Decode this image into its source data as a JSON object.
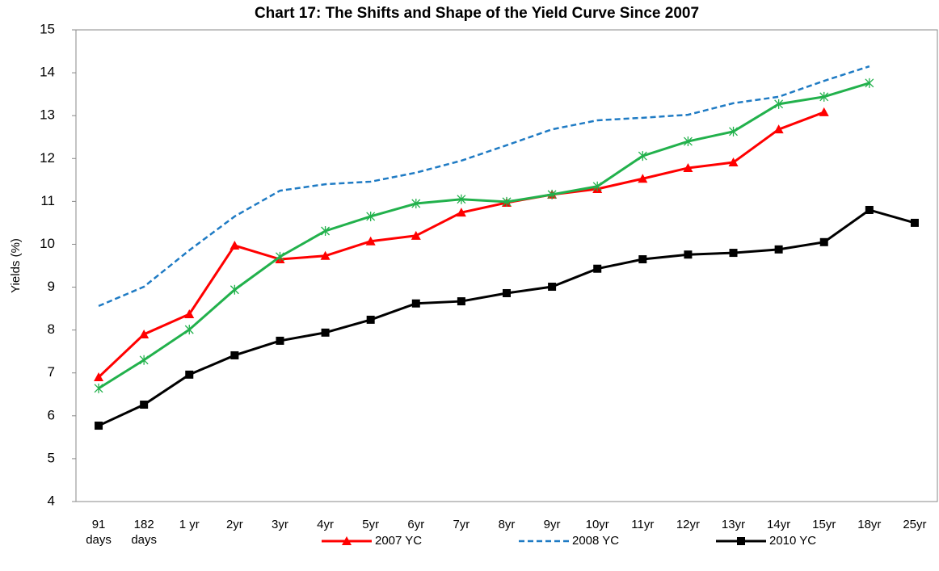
{
  "chart_data": {
    "type": "line",
    "title": "Chart 17: The Shifts and Shape of the Yield Curve Since 2007",
    "y_label": "Yields (%)",
    "categories": [
      "91 days",
      "182 days",
      "1 yr",
      "2yr",
      "3yr",
      "4yr",
      "5yr",
      "6yr",
      "7yr",
      "8yr",
      "9yr",
      "10yr",
      "11yr",
      "12yr",
      "13yr",
      "14yr",
      "15yr",
      "18yr",
      "25yr"
    ],
    "series": [
      {
        "name": "2007 YC",
        "color": "#ff0000",
        "marker": "triangle",
        "values": [
          6.9,
          7.9,
          8.37,
          9.97,
          9.65,
          9.73,
          10.07,
          10.2,
          10.74,
          10.97,
          11.16,
          11.29,
          11.53,
          11.78,
          11.91,
          12.68,
          13.08,
          null,
          null
        ]
      },
      {
        "name": "2008 YC",
        "color": "#1f7bc4",
        "dashed": true,
        "values": [
          8.56,
          9.01,
          9.86,
          10.65,
          11.25,
          11.4,
          11.46,
          11.67,
          11.95,
          12.31,
          12.68,
          12.89,
          12.95,
          13.02,
          13.29,
          13.44,
          13.81,
          14.15,
          null
        ]
      },
      {
        "color": "#22b14c",
        "marker": "star",
        "values": [
          6.64,
          7.3,
          8.01,
          8.94,
          9.71,
          10.31,
          10.65,
          10.95,
          11.05,
          10.99,
          11.16,
          11.35,
          12.06,
          12.4,
          12.63,
          13.27,
          13.44,
          13.76,
          null
        ]
      },
      {
        "name": "2010 YC",
        "color": "#000000",
        "marker": "square",
        "values": [
          5.77,
          6.26,
          6.96,
          7.41,
          7.75,
          7.94,
          8.24,
          8.62,
          8.67,
          8.86,
          9.01,
          9.43,
          9.65,
          9.76,
          9.8,
          9.88,
          10.05,
          10.8,
          10.5
        ]
      }
    ],
    "ylim": [
      4,
      15
    ],
    "yticks": [
      4,
      5,
      6,
      7,
      8,
      9,
      10,
      11,
      12,
      13,
      14,
      15
    ],
    "grid": false,
    "legend": "bottom"
  }
}
